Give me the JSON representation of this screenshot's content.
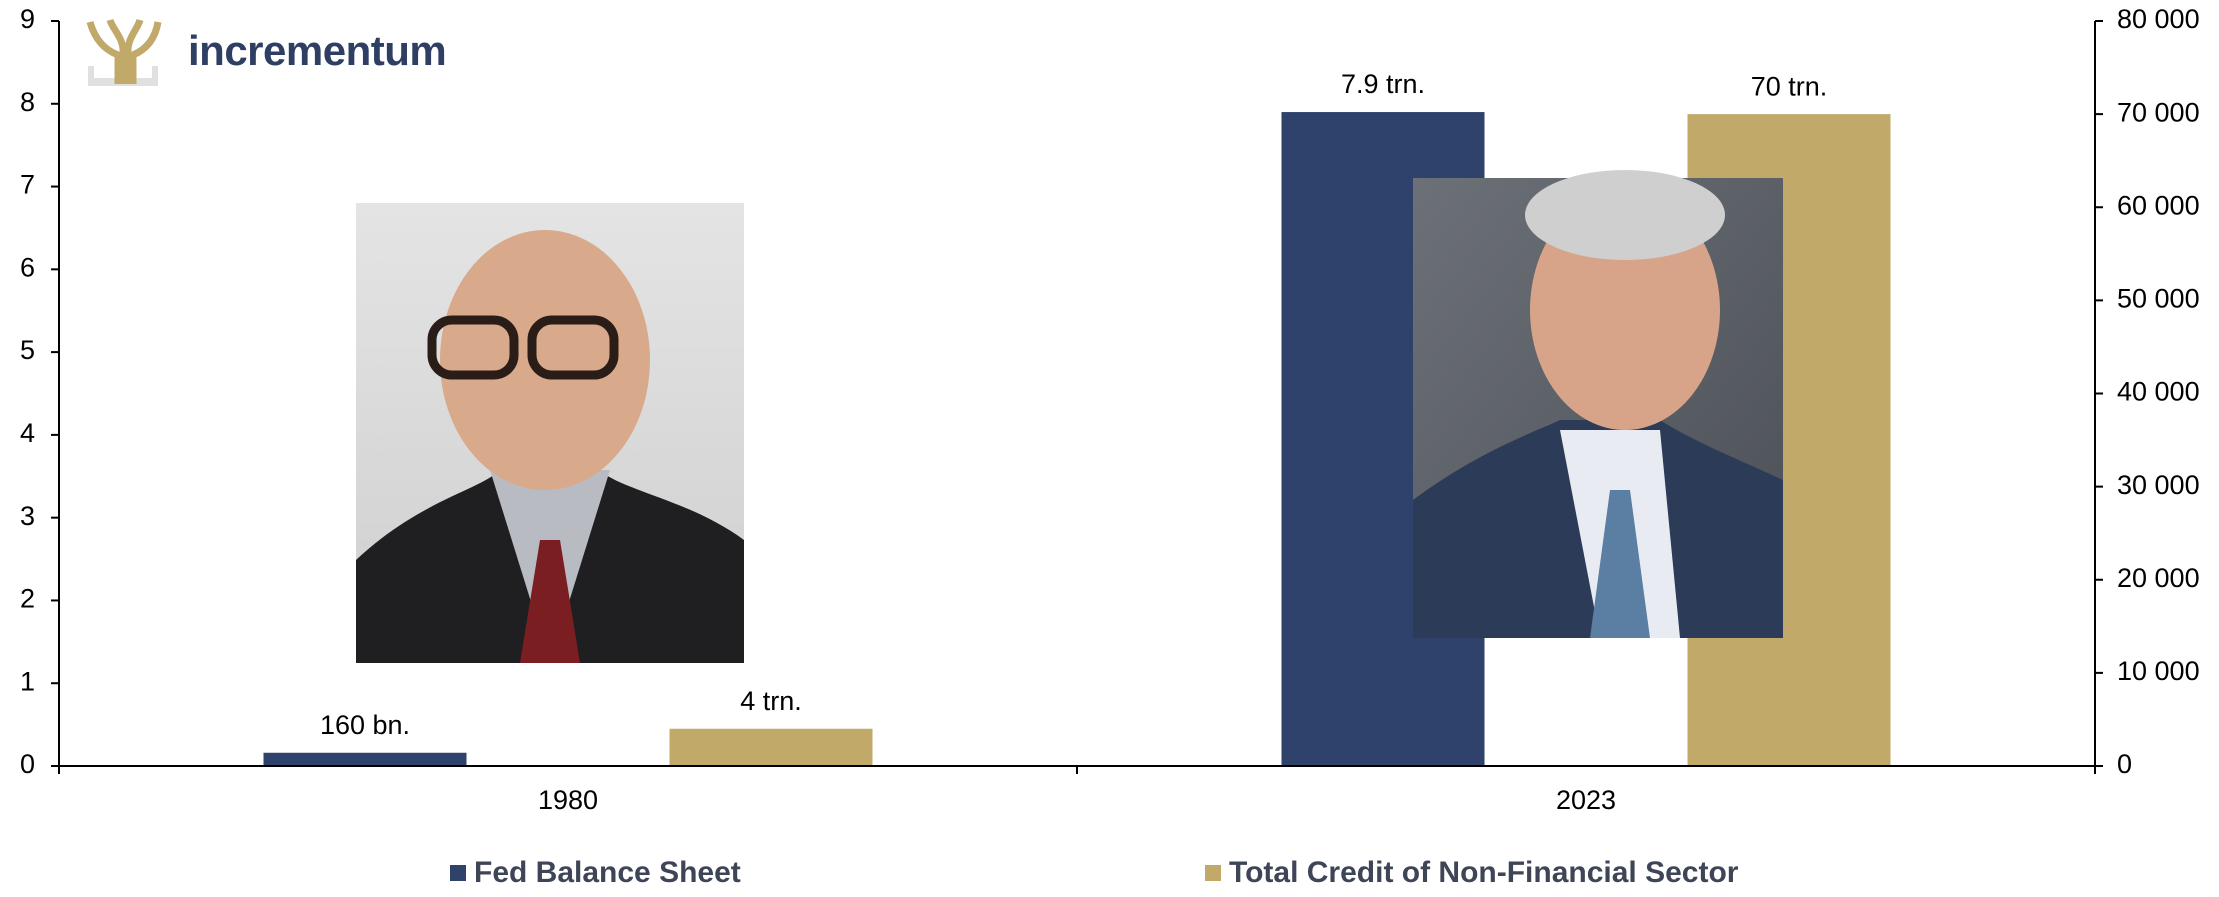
{
  "chart_data": {
    "type": "bar",
    "logo_text": "incrementum",
    "categories": [
      "1980",
      "2023"
    ],
    "series": [
      {
        "name": "Fed Balance Sheet",
        "color": "#2e426b",
        "values": [
          0.16,
          7.9
        ],
        "value_labels": [
          "160 bn.",
          "7.9 trn."
        ]
      },
      {
        "name": "Total Credit of Non-Financial Sector",
        "color": "#c1a96a",
        "axis": "y2",
        "values": [
          4000,
          70000
        ],
        "value_labels": [
          "4 trn.",
          "70 trn."
        ]
      }
    ],
    "ylim": [
      0,
      9
    ],
    "yticks": [
      0,
      1,
      2,
      3,
      4,
      5,
      6,
      7,
      8,
      9
    ],
    "y2lim": [
      0,
      80000
    ],
    "y2ticks": [
      0,
      {
        "value": 10000,
        "label": "10 000"
      },
      {
        "value": 20000,
        "label": "20 000"
      },
      {
        "value": 30000,
        "label": "30 000"
      },
      {
        "value": 40000,
        "label": "40 000"
      },
      {
        "value": 50000,
        "label": "50 000"
      },
      {
        "value": 60000,
        "label": "60 000"
      },
      {
        "value": 70000,
        "label": "70 000"
      },
      {
        "value": 80000,
        "label": "80 000"
      }
    ],
    "grid": false,
    "legend": "bottom"
  }
}
